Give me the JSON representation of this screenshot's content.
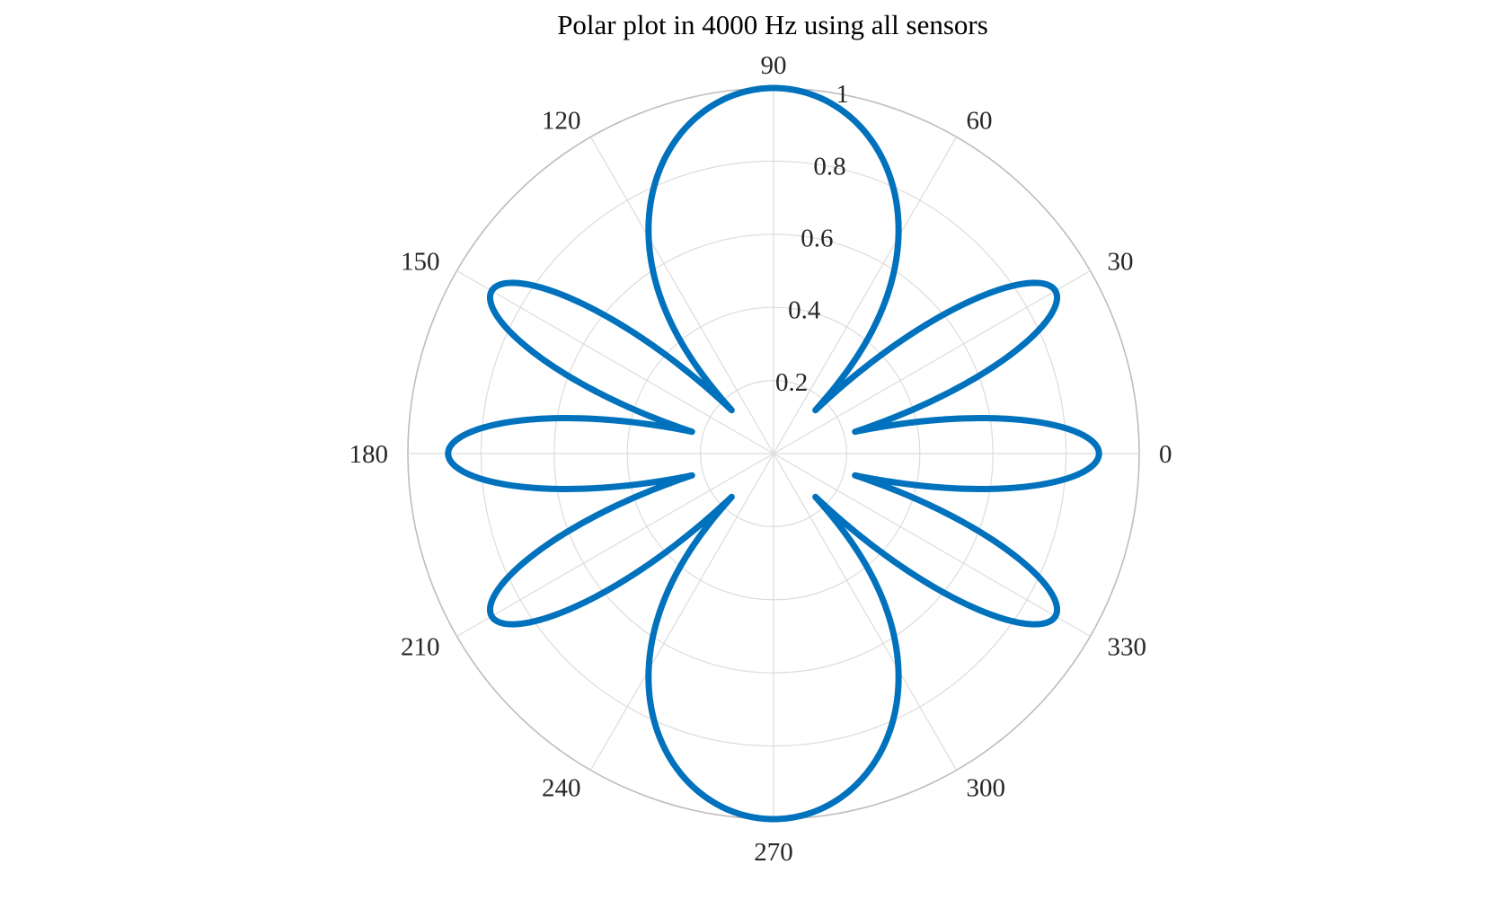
{
  "chart_data": {
    "type": "polar-line",
    "title": "Polar plot in 4000 Hz using all sensors",
    "theta_unit": "degrees",
    "theta_ticks": [
      "0",
      "30",
      "60",
      "90",
      "120",
      "150",
      "180",
      "210",
      "240",
      "270",
      "300",
      "330"
    ],
    "theta_tick_values": [
      0,
      30,
      60,
      90,
      120,
      150,
      180,
      210,
      240,
      270,
      300,
      330
    ],
    "r_ticks": [
      "0.2",
      "0.4",
      "0.6",
      "0.8",
      "1"
    ],
    "r_tick_values": [
      0.2,
      0.4,
      0.6,
      0.8,
      1
    ],
    "rlim": [
      0,
      1
    ],
    "grid": true,
    "series": [
      {
        "color": "#0072BD",
        "lobes": [
          {
            "direction_deg": 0,
            "peak_r": 0.89
          },
          {
            "direction_deg": 30,
            "peak_r": 0.89
          },
          {
            "direction_deg": 90,
            "peak_r": 1.0
          },
          {
            "direction_deg": 150,
            "peak_r": 0.89
          },
          {
            "direction_deg": 180,
            "peak_r": 0.89
          },
          {
            "direction_deg": 210,
            "peak_r": 0.89
          },
          {
            "direction_deg": 270,
            "peak_r": 1.0
          },
          {
            "direction_deg": 330,
            "peak_r": 0.89
          }
        ]
      }
    ]
  }
}
